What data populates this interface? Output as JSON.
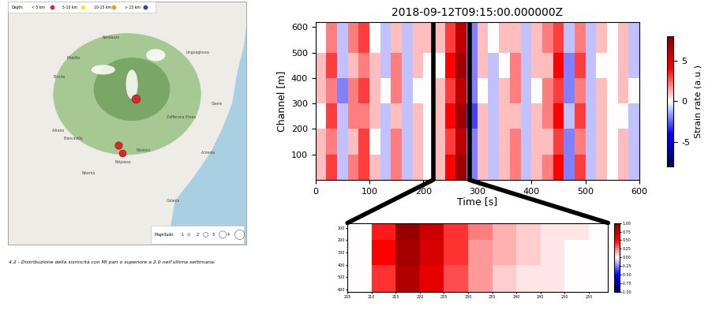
{
  "map": {
    "caption": "4.2 - Distribuzione della sismicità con Ml pari o superiore a 2.0 nell'ultima settimana.",
    "lon_range": [
      14.72,
      15.25
    ],
    "lat_range": [
      37.4,
      37.96
    ],
    "depth_legend": {
      "title": "Depth:",
      "classes": [
        {
          "label": "< 5 km",
          "color": "#e3232b"
        },
        {
          "label": "5-10 km",
          "color": "#f2e835"
        },
        {
          "label": "10-15 km",
          "color": "#f29a2e"
        },
        {
          "label": "> 15 km",
          "color": "#2b3fc4"
        }
      ]
    },
    "magnitude_legend": {
      "title": "Magnitudo:",
      "values": [
        1,
        2,
        3,
        4
      ]
    },
    "events": [
      {
        "lon": 15.004,
        "lat": 37.736,
        "depth": "< 5 km",
        "magnitude": 2.4
      },
      {
        "lon": 14.966,
        "lat": 37.63,
        "depth": "< 5 km",
        "magnitude": 2.1
      },
      {
        "lon": 14.974,
        "lat": 37.611,
        "depth": "< 5 km",
        "magnitude": 2.0
      }
    ],
    "places": [
      {
        "name": "Randazzo",
        "lon": 14.95,
        "lat": 37.877
      },
      {
        "name": "Maletto",
        "lon": 14.866,
        "lat": 37.83
      },
      {
        "name": "Bronte",
        "lon": 14.834,
        "lat": 37.786
      },
      {
        "name": "Linguaglossa",
        "lon": 15.142,
        "lat": 37.842
      },
      {
        "name": "Giarre",
        "lon": 15.184,
        "lat": 37.725
      },
      {
        "name": "Zafferana Etnea",
        "lon": 15.105,
        "lat": 37.694
      },
      {
        "name": "Adrano",
        "lon": 14.833,
        "lat": 37.663
      },
      {
        "name": "Biancavilla",
        "lon": 14.866,
        "lat": 37.645
      },
      {
        "name": "Nicolosi",
        "lon": 15.021,
        "lat": 37.617
      },
      {
        "name": "Belpasso",
        "lon": 14.976,
        "lat": 37.59
      },
      {
        "name": "Acireale",
        "lon": 15.166,
        "lat": 37.612
      },
      {
        "name": "Paternò",
        "lon": 14.9,
        "lat": 37.566
      },
      {
        "name": "Catania",
        "lon": 15.087,
        "lat": 37.502
      }
    ]
  },
  "chart_data": [
    {
      "type": "heatmap",
      "title": "2018-09-12T09:15:00.000000Z",
      "xlabel": "Time [s]",
      "ylabel": "Channel [m]",
      "xlim": [
        0,
        600
      ],
      "ylim": [
        0,
        620
      ],
      "xticks": [
        0,
        100,
        200,
        300,
        400,
        500,
        600
      ],
      "yticks": [
        100,
        200,
        300,
        400,
        500,
        600
      ],
      "x_edges": [
        0,
        20,
        40,
        60,
        80,
        100,
        120,
        140,
        160,
        180,
        200,
        220,
        240,
        260,
        280,
        300,
        320,
        340,
        360,
        380,
        400,
        420,
        440,
        460,
        480,
        500,
        520,
        540,
        560,
        580,
        600
      ],
      "y_edges": [
        0,
        100,
        200,
        300,
        400,
        500,
        620
      ],
      "cells": [
        [
          1,
          3,
          -1,
          2,
          3,
          1,
          -1,
          2,
          -1,
          1,
          0,
          1,
          4,
          7,
          -2,
          1,
          -1,
          1,
          2,
          -1,
          1,
          2,
          4,
          -2,
          3,
          -1,
          1,
          0,
          1,
          -1
        ],
        [
          1,
          2,
          -1,
          1,
          3,
          0,
          -1,
          2,
          -1,
          1,
          0,
          1,
          3,
          6,
          -2,
          1,
          -1,
          1,
          2,
          -1,
          1,
          1,
          3,
          -2,
          2,
          -1,
          1,
          0,
          1,
          -1
        ],
        [
          0,
          3,
          -1,
          2,
          2,
          1,
          -1,
          1,
          -1,
          1,
          0,
          1,
          4,
          7,
          -3,
          1,
          -1,
          1,
          1,
          -1,
          1,
          2,
          4,
          -1,
          3,
          -1,
          1,
          0,
          0,
          -1
        ],
        [
          1,
          2,
          -2,
          2,
          3,
          1,
          0,
          2,
          -1,
          0,
          0,
          1,
          3,
          6,
          -2,
          0,
          -1,
          1,
          2,
          -1,
          0,
          2,
          3,
          -2,
          2,
          -1,
          1,
          0,
          1,
          0
        ],
        [
          1,
          3,
          -1,
          1,
          2,
          1,
          -1,
          2,
          -1,
          1,
          0,
          0,
          4,
          7,
          -2,
          1,
          -1,
          0,
          2,
          -1,
          1,
          1,
          4,
          -2,
          3,
          -1,
          0,
          0,
          1,
          -1
        ],
        [
          0,
          2,
          -1,
          2,
          3,
          0,
          -1,
          1,
          -1,
          1,
          1,
          1,
          3,
          6,
          -2,
          1,
          0,
          1,
          1,
          -1,
          1,
          2,
          3,
          -1,
          2,
          -1,
          1,
          0,
          1,
          -1
        ]
      ],
      "colorbar": {
        "label": "Strain rate (a.u.)",
        "range": [
          -8,
          8
        ],
        "ticks": [
          -5,
          0,
          5
        ]
      },
      "zoom_marks": [
        218,
        285
      ]
    },
    {
      "type": "heatmap",
      "xlim": [
        205,
        259
      ],
      "ylim": [
        620,
        60
      ],
      "xticks": [
        205,
        210,
        215,
        220,
        225,
        230,
        235,
        240,
        245,
        250,
        255
      ],
      "yticks": [
        100,
        200,
        300,
        400,
        500,
        600
      ],
      "x_edges": [
        205,
        210,
        215,
        220,
        225,
        230,
        235,
        240,
        245,
        250,
        255,
        260
      ],
      "y_edges": [
        60,
        200,
        400,
        620
      ],
      "cells": [
        [
          0.0,
          0.45,
          0.9,
          0.7,
          0.4,
          0.25,
          0.15,
          0.1,
          0.05,
          0.05,
          0.0
        ],
        [
          0.0,
          0.5,
          0.85,
          0.65,
          0.4,
          0.2,
          0.15,
          0.1,
          0.05,
          0.0,
          0.0
        ],
        [
          0.0,
          0.4,
          0.8,
          0.6,
          0.35,
          0.2,
          0.1,
          0.05,
          0.05,
          0.0,
          0.0
        ]
      ],
      "colorbar": {
        "range": [
          -1,
          1
        ],
        "ticks": [
          {
            "value": -1,
            "label": "-1.00"
          },
          {
            "value": -0.75,
            "label": "-0.75"
          },
          {
            "value": -0.5,
            "label": "-0.50"
          },
          {
            "value": -0.25,
            "label": "-0.25"
          },
          {
            "value": 0,
            "label": "0.00"
          },
          {
            "value": 0.25,
            "label": "0.25"
          },
          {
            "value": 0.5,
            "label": "0.50"
          },
          {
            "value": 0.75,
            "label": "0.75"
          },
          {
            "value": 1,
            "label": "1.00"
          }
        ]
      }
    }
  ]
}
